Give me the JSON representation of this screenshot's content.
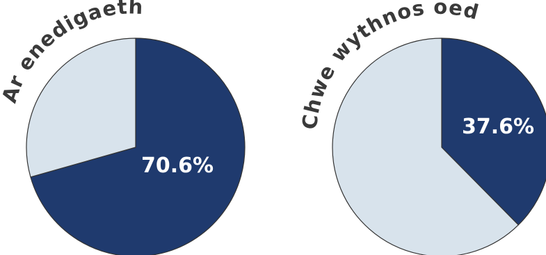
{
  "chart_data": [
    {
      "type": "pie",
      "title": "Ar enedigaeth",
      "slices": [
        {
          "label": "70.6%",
          "value": 70.6,
          "color": "#1f3a6e",
          "shows_label": true
        },
        {
          "label": "",
          "value": 29.4,
          "color": "#d8e3ec",
          "shows_label": false
        }
      ]
    },
    {
      "type": "pie",
      "title": "Chwe wythnos oed",
      "slices": [
        {
          "label": "37.6%",
          "value": 37.6,
          "color": "#1f3a6e",
          "shows_label": true
        },
        {
          "label": "",
          "value": 62.4,
          "color": "#d8e3ec",
          "shows_label": false
        }
      ]
    }
  ],
  "colors": {
    "dark": "#1f3a6e",
    "light": "#d8e3ec",
    "outline": "#333333",
    "title_text": "#3a3a3a",
    "label_text": "#ffffff"
  }
}
